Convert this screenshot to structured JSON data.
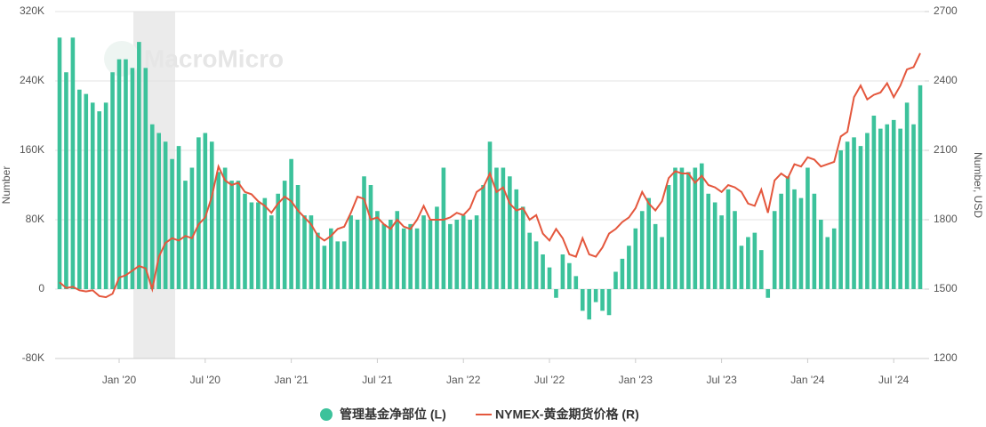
{
  "chart_data": {
    "type": "bar-line",
    "watermark": "MacroMicro",
    "y_label": "Number",
    "y2_label": "Number, USD",
    "categories": [
      null,
      null,
      null,
      null,
      null,
      null,
      null,
      null,
      null,
      "Jan '20",
      null,
      null,
      null,
      null,
      null,
      null,
      null,
      null,
      null,
      null,
      null,
      null,
      "Jul '20",
      null,
      null,
      null,
      null,
      null,
      null,
      null,
      null,
      null,
      null,
      null,
      null,
      "Jan '21",
      null,
      null,
      null,
      null,
      null,
      null,
      null,
      null,
      null,
      null,
      null,
      null,
      "Jul '21",
      null,
      null,
      null,
      null,
      null,
      null,
      null,
      null,
      null,
      null,
      null,
      null,
      "Jan '22",
      null,
      null,
      null,
      null,
      null,
      null,
      null,
      null,
      null,
      null,
      null,
      null,
      "Jul '22",
      null,
      null,
      null,
      null,
      null,
      null,
      null,
      null,
      null,
      null,
      null,
      null,
      "Jan '23",
      null,
      null,
      null,
      null,
      null,
      null,
      null,
      null,
      null,
      null,
      null,
      null,
      "Jul '23",
      null,
      null,
      null,
      null,
      null,
      null,
      null,
      null,
      null,
      null,
      null,
      null,
      "Jan '24",
      null,
      null,
      null,
      null,
      null,
      null,
      null,
      null,
      null,
      null,
      null,
      null,
      "Jul '24",
      null,
      null,
      null,
      null
    ],
    "series": [
      {
        "name": "管理基金净部位 (L)",
        "type": "bar",
        "color": "#3cc29b",
        "values": [
          290000,
          250000,
          290000,
          230000,
          225000,
          215000,
          205000,
          215000,
          250000,
          265000,
          265000,
          255000,
          285000,
          255000,
          190000,
          180000,
          170000,
          150000,
          165000,
          125000,
          140000,
          175000,
          180000,
          170000,
          135000,
          140000,
          125000,
          125000,
          110000,
          100000,
          100000,
          105000,
          85000,
          110000,
          125000,
          150000,
          120000,
          85000,
          85000,
          65000,
          50000,
          70000,
          55000,
          55000,
          85000,
          80000,
          130000,
          120000,
          90000,
          75000,
          80000,
          90000,
          70000,
          75000,
          70000,
          85000,
          80000,
          95000,
          140000,
          75000,
          80000,
          85000,
          80000,
          85000,
          120000,
          170000,
          140000,
          140000,
          130000,
          115000,
          95000,
          65000,
          55000,
          40000,
          25000,
          -10000,
          40000,
          30000,
          15000,
          -25000,
          -35000,
          -15000,
          -25000,
          -30000,
          20000,
          35000,
          50000,
          70000,
          90000,
          105000,
          75000,
          60000,
          120000,
          140000,
          140000,
          135000,
          140000,
          145000,
          110000,
          100000,
          85000,
          115000,
          90000,
          50000,
          60000,
          65000,
          45000,
          -10000,
          90000,
          110000,
          130000,
          115000,
          105000,
          140000,
          110000,
          80000,
          60000,
          70000,
          160000,
          170000,
          175000,
          165000,
          180000,
          200000,
          185000,
          190000,
          195000,
          185000,
          215000,
          190000,
          235000
        ]
      },
      {
        "name": "NYMEX-黄金期货价格 (R)",
        "type": "line",
        "axis": "y2",
        "color": "#e4573d",
        "values": [
          1530,
          1505,
          1510,
          1495,
          1490,
          1495,
          1470,
          1465,
          1480,
          1550,
          1560,
          1580,
          1600,
          1590,
          1500,
          1640,
          1700,
          1720,
          1710,
          1730,
          1720,
          1780,
          1810,
          1900,
          2030,
          1970,
          1950,
          1960,
          1920,
          1910,
          1880,
          1860,
          1830,
          1870,
          1900,
          1880,
          1840,
          1810,
          1780,
          1730,
          1710,
          1730,
          1760,
          1770,
          1830,
          1900,
          1890,
          1800,
          1810,
          1780,
          1760,
          1800,
          1770,
          1760,
          1800,
          1860,
          1800,
          1800,
          1800,
          1810,
          1830,
          1820,
          1850,
          1920,
          1940,
          2000,
          1920,
          1940,
          1870,
          1840,
          1850,
          1800,
          1820,
          1740,
          1710,
          1760,
          1720,
          1650,
          1640,
          1720,
          1650,
          1640,
          1680,
          1740,
          1760,
          1790,
          1810,
          1850,
          1920,
          1870,
          1840,
          1880,
          1980,
          2010,
          2000,
          2000,
          1960,
          1990,
          1950,
          1940,
          1920,
          1950,
          1940,
          1920,
          1870,
          1860,
          1930,
          1830,
          1970,
          2000,
          1980,
          2040,
          2030,
          2070,
          2060,
          2030,
          2040,
          2050,
          2160,
          2180,
          2330,
          2380,
          2320,
          2340,
          2350,
          2390,
          2330,
          2380,
          2450,
          2460,
          2520
        ]
      }
    ],
    "ylim": [
      -80000,
      320000
    ],
    "yticks": [
      {
        "value": -80000,
        "label": "-80K"
      },
      0,
      {
        "value": 80000,
        "label": "80K"
      },
      {
        "value": 160000,
        "label": "160K"
      },
      {
        "value": 240000,
        "label": "240K"
      },
      {
        "value": 320000,
        "label": "320K"
      }
    ],
    "y2lim": [
      1200,
      2700
    ],
    "y2ticks": [
      1200,
      1500,
      1800,
      2100,
      2400,
      2700
    ],
    "grid": true
  }
}
